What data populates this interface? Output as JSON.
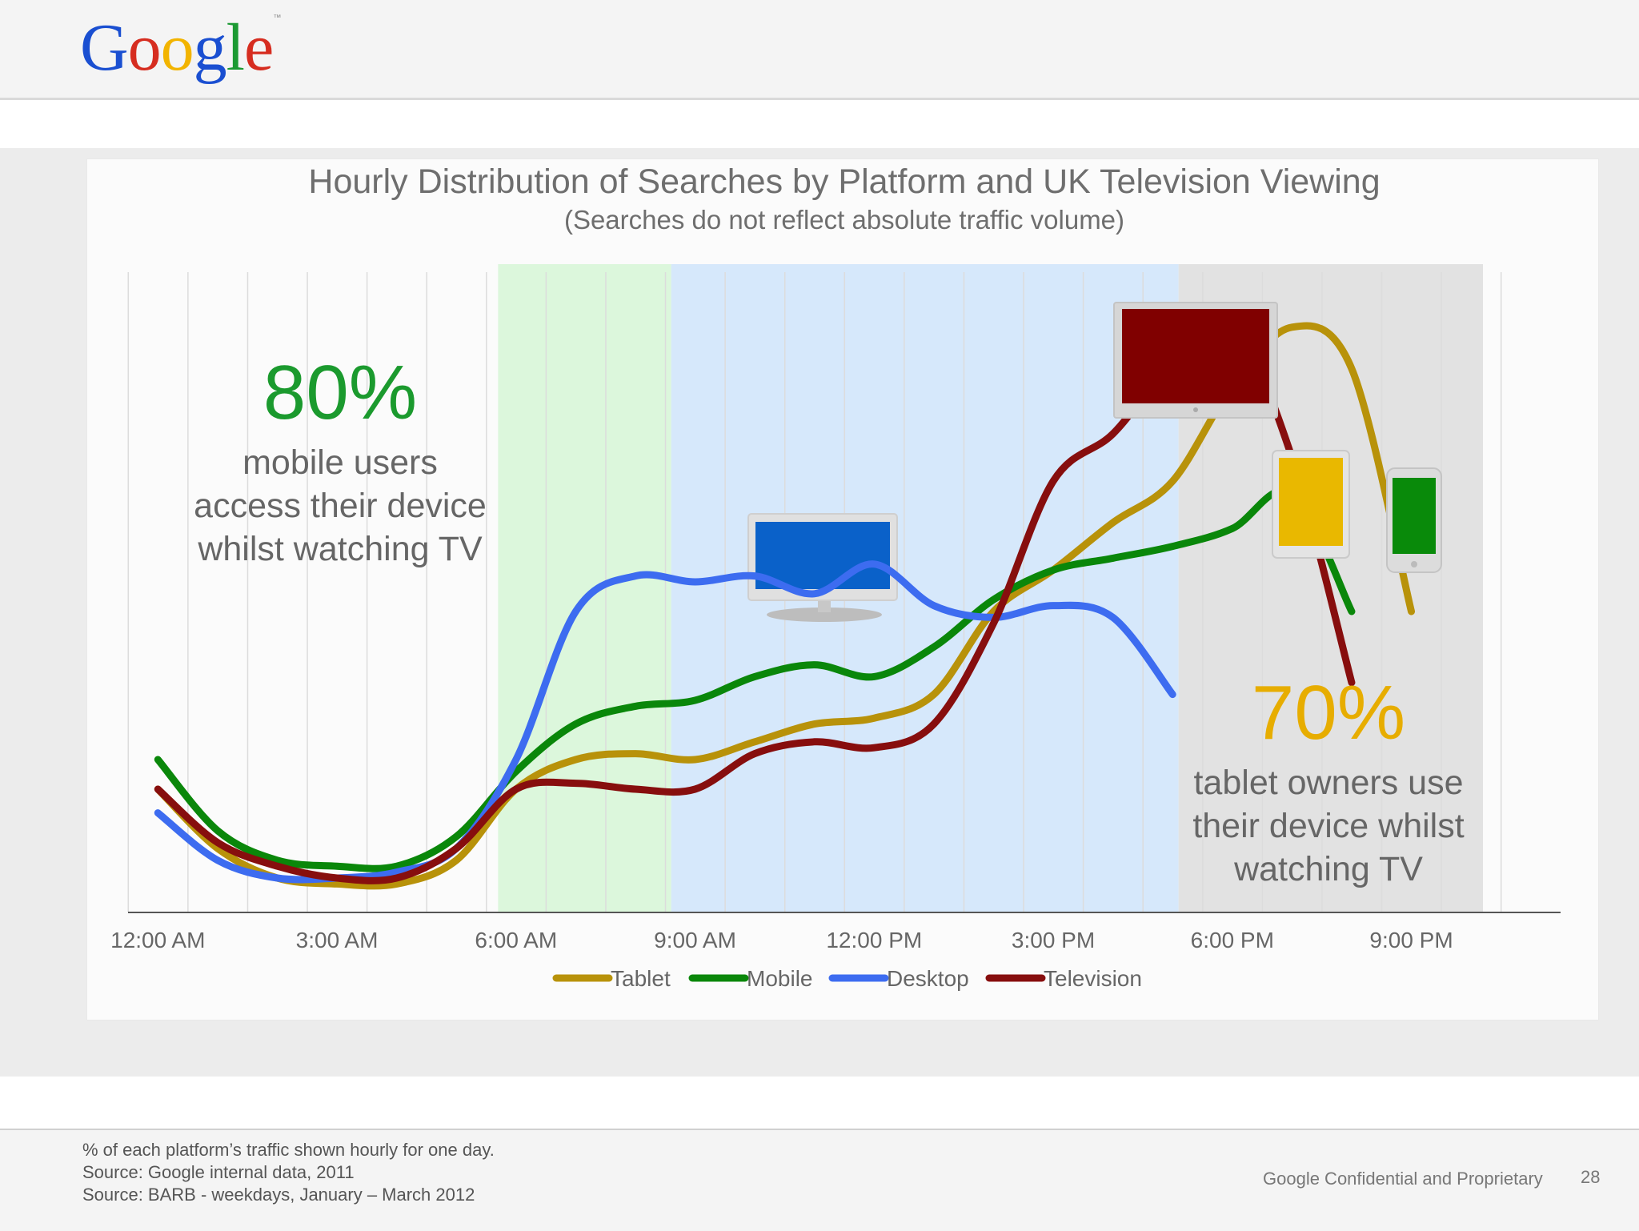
{
  "header": {
    "logo_letters": [
      {
        "ch": "G",
        "color": "#1a4fd1"
      },
      {
        "ch": "o",
        "color": "#d62d20"
      },
      {
        "ch": "o",
        "color": "#f2b400"
      },
      {
        "ch": "g",
        "color": "#1a4fd1"
      },
      {
        "ch": "l",
        "color": "#1c9a33"
      },
      {
        "ch": "e",
        "color": "#d62d20"
      }
    ],
    "logo_tm": "™"
  },
  "callouts": {
    "mobile": {
      "value": "80%",
      "line1": "mobile users",
      "line2": "access their device",
      "line3": "whilst watching TV"
    },
    "tablet": {
      "value": "70%",
      "line1": "tablet owners  use",
      "line2": "their device whilst",
      "line3": "watching TV"
    }
  },
  "chart_data": {
    "type": "line",
    "title": "Hourly Distribution of Searches by Platform and UK Television Viewing",
    "subtitle": "(Searches do not reflect absolute traffic volume)",
    "xlabel": "",
    "ylabel": "",
    "x": [
      0,
      1,
      2,
      3,
      4,
      5,
      6,
      7,
      8,
      9,
      10,
      11,
      12,
      13,
      14,
      15,
      16,
      17,
      18,
      19,
      20,
      21,
      22,
      23
    ],
    "x_tick_values": [
      0,
      3,
      6,
      9,
      12,
      15,
      18,
      21
    ],
    "x_tick_labels": [
      "12:00 AM",
      "3:00 AM",
      "6:00 AM",
      "9:00 AM",
      "12:00 PM",
      "3:00 PM",
      "6:00 PM",
      "9:00 PM"
    ],
    "xlim": [
      -0.5,
      23.5
    ],
    "ylim": [
      0,
      100
    ],
    "grid": "vertical",
    "legend_position": "bottom",
    "time_bands": [
      {
        "start": 5.7,
        "end": 8.6,
        "color": "#dcf7dc"
      },
      {
        "start": 8.6,
        "end": 17.1,
        "color": "#d6e8fb"
      },
      {
        "start": 17.1,
        "end": 22.2,
        "color": "#e2e2e2"
      }
    ],
    "series": [
      {
        "name": "Tablet",
        "color": "#b8920a",
        "values": [
          20,
          10,
          5,
          4,
          4,
          8,
          20,
          25,
          26,
          25,
          28,
          31,
          32,
          36,
          50,
          57,
          65,
          72,
          88,
          98,
          91,
          50,
          0,
          0
        ]
      },
      {
        "name": "Mobile",
        "color": "#0a870a",
        "values": [
          25,
          13,
          8,
          7,
          7,
          12,
          23,
          31,
          34,
          35,
          39,
          41,
          39,
          44,
          52,
          57,
          59,
          61,
          64,
          70,
          50,
          0,
          0,
          0
        ]
      },
      {
        "name": "Desktop",
        "color": "#3d6cf0",
        "values": [
          16,
          8,
          5,
          5,
          6,
          10,
          25,
          50,
          56,
          55,
          56,
          53,
          58,
          51,
          49,
          51,
          49,
          36,
          0,
          0,
          0,
          0,
          0,
          0
        ]
      },
      {
        "name": "Television",
        "color": "#870e0e",
        "values": [
          20,
          11,
          7,
          5,
          5,
          10,
          20,
          21,
          20,
          20,
          26,
          28,
          27,
          31,
          48,
          72,
          80,
          92,
          98,
          76,
          38,
          0,
          0,
          0
        ]
      }
    ]
  },
  "devices": {
    "desktop_icon": "desktop-monitor-icon",
    "tv_icon": "television-icon",
    "tablet_icon": "tablet-icon",
    "phone_icon": "smartphone-icon"
  },
  "footer": {
    "note1": "% of each platform’s traffic shown hourly for one day.",
    "note2": "Source: Google internal data, 2011",
    "note3": "Source: BARB  - weekdays, January – March 2012",
    "confidential": "Google Confidential and Proprietary",
    "page_number": "28"
  }
}
